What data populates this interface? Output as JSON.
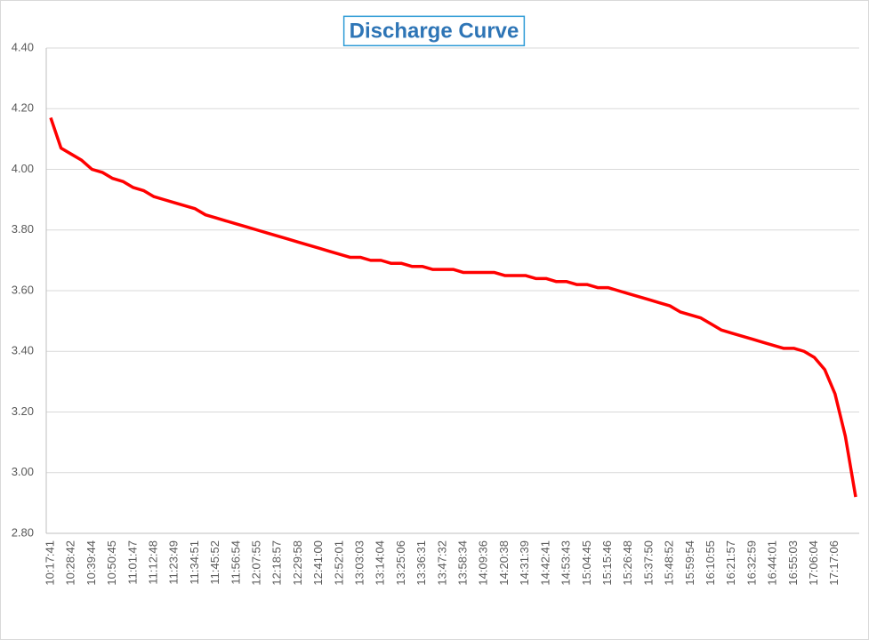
{
  "chart_data": {
    "type": "line",
    "title": "Discharge Curve",
    "categories": [
      "10:17:41",
      null,
      "10:28:42",
      null,
      "10:39:44",
      null,
      "10:50:45",
      null,
      "11:01:47",
      null,
      "11:12:48",
      null,
      "11:23:49",
      null,
      "11:34:51",
      null,
      "11:45:52",
      null,
      "11:56:54",
      null,
      "12:07:55",
      null,
      "12:18:57",
      null,
      "12:29:58",
      null,
      "12:41:00",
      null,
      "12:52:01",
      null,
      "13:03:03",
      null,
      "13:14:04",
      null,
      "13:25:06",
      null,
      "13:36:31",
      null,
      "13:47:32",
      null,
      "13:58:34",
      null,
      "14:09:36",
      null,
      "14:20:38",
      null,
      "14:31:39",
      null,
      "14:42:41",
      null,
      "14:53:43",
      null,
      "15:04:45",
      null,
      "15:15:46",
      null,
      "15:26:48",
      null,
      "15:37:50",
      null,
      "15:48:52",
      null,
      "15:59:54",
      null,
      "16:10:55",
      null,
      "16:21:57",
      null,
      "16:32:59",
      null,
      "16:44:01",
      null,
      "16:55:03",
      null,
      "17:06:04",
      null,
      "17:17:06",
      null,
      null
    ],
    "series": [
      {
        "color": "#ff0000",
        "values": [
          4.17,
          4.07,
          4.05,
          4.03,
          4.0,
          3.99,
          3.97,
          3.96,
          3.94,
          3.93,
          3.91,
          3.9,
          3.89,
          3.88,
          3.87,
          3.85,
          3.84,
          3.83,
          3.82,
          3.81,
          3.8,
          3.79,
          3.78,
          3.77,
          3.76,
          3.75,
          3.74,
          3.73,
          3.72,
          3.71,
          3.71,
          3.7,
          3.7,
          3.69,
          3.69,
          3.68,
          3.68,
          3.67,
          3.67,
          3.67,
          3.66,
          3.66,
          3.66,
          3.66,
          3.65,
          3.65,
          3.65,
          3.64,
          3.64,
          3.63,
          3.63,
          3.62,
          3.62,
          3.61,
          3.61,
          3.6,
          3.59,
          3.58,
          3.57,
          3.56,
          3.55,
          3.53,
          3.52,
          3.51,
          3.49,
          3.47,
          3.46,
          3.45,
          3.44,
          3.43,
          3.42,
          3.41,
          3.41,
          3.4,
          3.38,
          3.34,
          3.26,
          3.12,
          2.92
        ]
      }
    ],
    "ylim": [
      2.8,
      4.4
    ],
    "yticks": [
      {
        "value": 2.8,
        "label": "2.80"
      },
      {
        "value": 3.0,
        "label": "3.00"
      },
      {
        "value": 3.2,
        "label": "3.20"
      },
      {
        "value": 3.4,
        "label": "3.40"
      },
      {
        "value": 3.6,
        "label": "3.60"
      },
      {
        "value": 3.8,
        "label": "3.80"
      },
      {
        "value": 4.0,
        "label": "4.00"
      },
      {
        "value": 4.2,
        "label": "4.20"
      },
      {
        "value": 4.4,
        "label": "4.40"
      }
    ],
    "grid": true
  }
}
